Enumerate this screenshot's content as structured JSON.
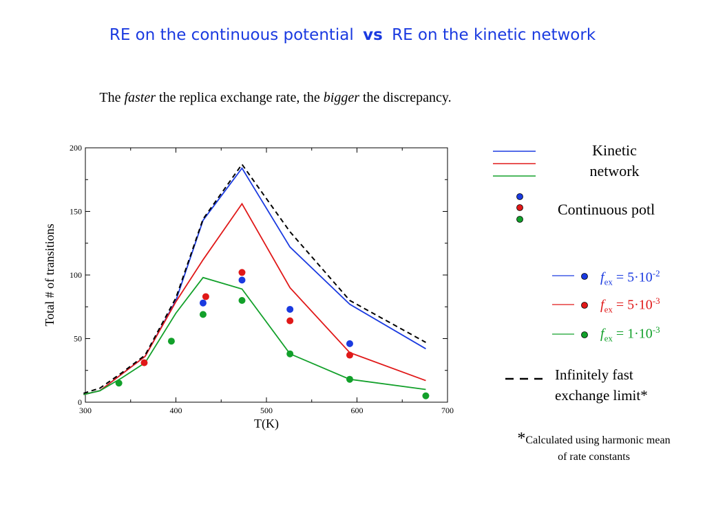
{
  "header": {
    "title_left": "RE on the continuous potential",
    "title_vs": "vs",
    "title_right": "RE on the kinetic network"
  },
  "subtitle": {
    "part1": "The ",
    "faster": "faster",
    "part2": " the  replica exchange rate, the ",
    "bigger": "bigger",
    "part3": " the discrepancy."
  },
  "legend": {
    "kinetic_network": "Kinetic network",
    "continuous_potl": "Continuous potl",
    "fex_symbol": "f",
    "fex_sub": "ex",
    "fex1_mantissa": " = 5·10",
    "fex1_exp": "-2",
    "fex2_mantissa": " = 5·10",
    "fex2_exp": "-3",
    "fex3_mantissa": " = 1·10",
    "fex3_exp": "-3",
    "infinitely_fast": "Infinitely fast exchange limit*"
  },
  "footnote": {
    "star": "*",
    "text": "Calculated using harmonic mean of rate constants"
  },
  "colors": {
    "title": "#1a3ae0",
    "blue": "#1a3ae0",
    "red": "#e01818",
    "green": "#12a02a",
    "black": "#000000"
  },
  "chart_data": {
    "type": "line",
    "xlabel": "T(K)",
    "ylabel": "Total # of transitions",
    "xlim": [
      300,
      700
    ],
    "ylim": [
      0,
      200
    ],
    "xticks": [
      300,
      400,
      500,
      600,
      700
    ],
    "yticks": [
      0,
      50,
      100,
      150,
      200
    ],
    "series": [
      {
        "color": "blue",
        "style": "line",
        "x": [
          298,
          316,
          340,
          366,
          400,
          430,
          473,
          526,
          592,
          676
        ],
        "y": [
          6,
          9,
          22,
          36,
          80,
          143,
          184,
          122,
          77,
          42
        ]
      },
      {
        "color": "red",
        "style": "line",
        "x": [
          298,
          316,
          340,
          366,
          400,
          430,
          473,
          526,
          592,
          676
        ],
        "y": [
          6,
          9,
          22,
          36,
          79,
          112,
          156,
          90,
          39,
          17
        ]
      },
      {
        "color": "green",
        "style": "line",
        "x": [
          298,
          316,
          340,
          366,
          400,
          430,
          473,
          526,
          592,
          676
        ],
        "y": [
          6,
          9,
          19,
          31,
          70,
          98,
          89,
          38,
          18,
          10
        ]
      },
      {
        "color": "black",
        "style": "dashed",
        "x": [
          298,
          316,
          340,
          366,
          400,
          430,
          473,
          526,
          592,
          676
        ],
        "y": [
          7,
          11,
          23,
          37,
          82,
          144,
          187,
          134,
          80,
          47
        ]
      },
      {
        "color": "blue",
        "style": "points",
        "x": [
          430,
          473,
          526,
          592
        ],
        "y": [
          78,
          96,
          73,
          46
        ]
      },
      {
        "color": "red",
        "style": "points",
        "x": [
          365,
          433,
          473,
          526,
          592
        ],
        "y": [
          31,
          83,
          102,
          64,
          37
        ]
      },
      {
        "color": "green",
        "style": "points",
        "x": [
          337,
          395,
          430,
          473,
          526,
          592,
          676
        ],
        "y": [
          15,
          48,
          69,
          80,
          38,
          18,
          5
        ]
      }
    ]
  }
}
